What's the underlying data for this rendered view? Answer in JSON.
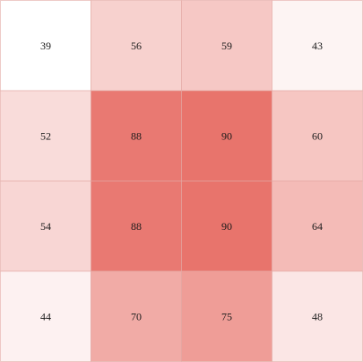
{
  "chart_data": {
    "type": "heatmap",
    "rows": 4,
    "cols": 4,
    "values": [
      [
        39,
        56,
        59,
        43
      ],
      [
        52,
        88,
        90,
        60
      ],
      [
        54,
        88,
        90,
        64
      ],
      [
        44,
        70,
        75,
        48
      ]
    ],
    "value_range": [
      39,
      90
    ],
    "colormap": {
      "low": "#ffffff",
      "high": "#e8746c",
      "cell_border": "#e3a9a4"
    },
    "title": "",
    "xlabel": "",
    "ylabel": "",
    "legend": "none",
    "grid": false
  }
}
